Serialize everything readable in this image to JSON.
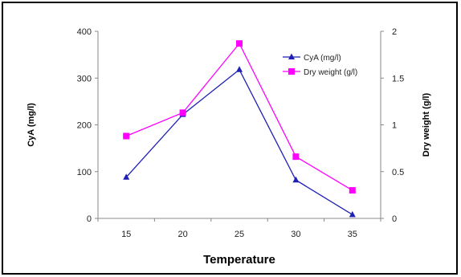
{
  "chart_data": {
    "type": "line",
    "categories": [
      "15",
      "20",
      "25",
      "30",
      "35"
    ],
    "x": [
      15,
      20,
      25,
      30,
      35
    ],
    "xlabel": "Temperature",
    "ylabel_left": "CyA (mg/l)",
    "ylabel_right": "Dry weight (g/l)",
    "ylim_left": [
      0,
      400
    ],
    "ylim_right": [
      0,
      2
    ],
    "yticks_left": [
      "0",
      "100",
      "200",
      "300",
      "400"
    ],
    "yticks_right": [
      "0",
      "0.5",
      "1",
      "1.5",
      "2"
    ],
    "grid": false,
    "legend_position": "top-right",
    "series": [
      {
        "name": "CyA (mg/l)",
        "axis": "left",
        "values": [
          88,
          222,
          318,
          82,
          8
        ],
        "color": "#1f1fb4",
        "marker": "triangle"
      },
      {
        "name": "Dry weight  (g/l)",
        "axis": "right",
        "values": [
          0.88,
          1.13,
          1.87,
          0.66,
          0.3
        ],
        "color": "#ff00ff",
        "marker": "square"
      }
    ]
  }
}
